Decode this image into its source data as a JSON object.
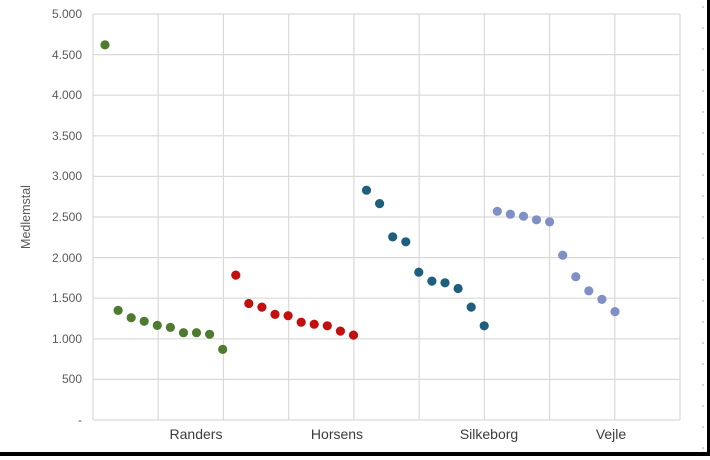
{
  "chart_data": {
    "type": "scatter",
    "title": "",
    "xlabel": "",
    "ylabel": "Medlemstal",
    "ylim": [
      0,
      5000
    ],
    "ytick_interval": 500,
    "y_ticks_top_to_bottom": [
      "5.000",
      "4.500",
      "4.000",
      "3.500",
      "3.000",
      "2.500",
      "2.000",
      "1.500",
      "1.000",
      "500",
      "-"
    ],
    "x_group_labels": [
      "Randers",
      "Horsens",
      "Silkeborg",
      "Vejle"
    ],
    "grid": true,
    "legend": "none",
    "marker": "filled-circle",
    "series": [
      {
        "name": "Randers",
        "color": "#4f7b31",
        "values": [
          4620,
          1350,
          1260,
          1215,
          1165,
          1140,
          1075,
          1075,
          1055,
          870
        ]
      },
      {
        "name": "Horsens",
        "color": "#c40f0f",
        "values": [
          1785,
          1435,
          1390,
          1300,
          1285,
          1205,
          1180,
          1160,
          1095,
          1045
        ]
      },
      {
        "name": "Silkeborg",
        "color": "#1e5f7e",
        "values": [
          2830,
          2665,
          2255,
          2195,
          1820,
          1710,
          1690,
          1620,
          1390,
          1160
        ]
      },
      {
        "name": "Vejle",
        "color": "#8090c6",
        "values": [
          2570,
          2535,
          2510,
          2465,
          2440,
          2030,
          1765,
          1590,
          1485,
          1335
        ]
      }
    ],
    "colors": {
      "gridline": "#d9d9d9",
      "ytick_text": "#595959",
      "xlabel_text": "#3b3b3b"
    }
  }
}
